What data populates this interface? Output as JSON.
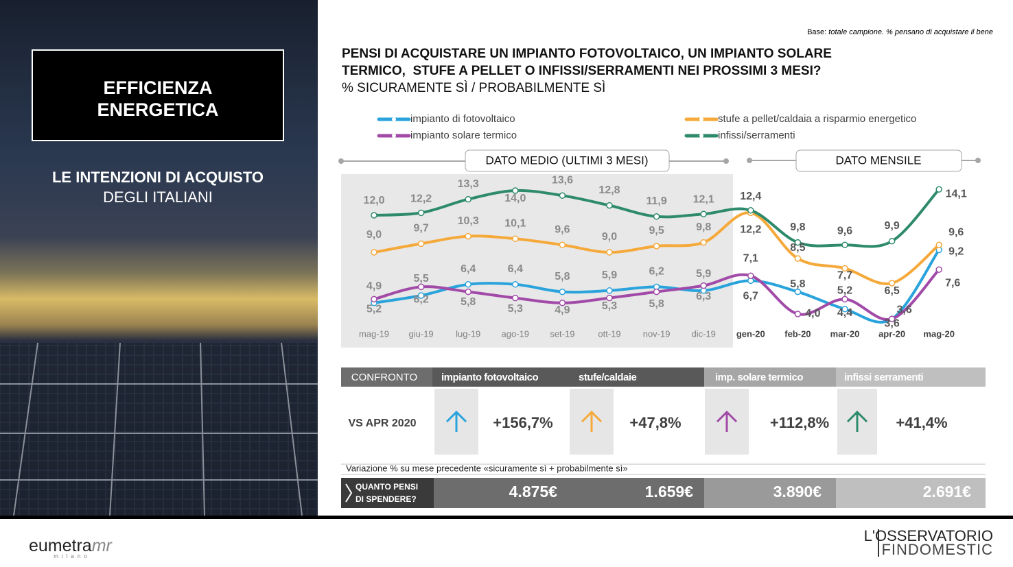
{
  "base_note": {
    "label": "Base:",
    "text": "totale campione. % pensano di acquistare il bene"
  },
  "sidebar": {
    "title_lines": [
      "EFFICIENZA",
      "ENERGETICA"
    ],
    "subtitle": "LE INTENZIONI DI ACQUISTO",
    "subtitle2": "DEGLI ITALIANI"
  },
  "chart_data": {
    "type": "line",
    "title_lines": [
      "PENSI DI ACQUISTARE UN IMPIANTO FOTOVOLTAICO, UN IMPIANTO SOLARE",
      "TERMICO,  STUFE A PELLET O INFISSI/SERRAMENTI NEI PROSSIMI 3 MESI?"
    ],
    "subtitle": "% SICURAMENTE SÌ / PROBABILMENTE SÌ",
    "period_labels": [
      "DATO MEDIO (ULTIMI 3 MESI)",
      "DATO MENSILE"
    ],
    "categories": [
      "mag-19",
      "giu-19",
      "lug-19",
      "ago-19",
      "set-19",
      "ott-19",
      "nov-19",
      "dic-19",
      "gen-20",
      "feb-20",
      "mar-20",
      "apr-20",
      "mag-20"
    ],
    "ylim": [
      0,
      15
    ],
    "series": [
      {
        "name": "impianto di fotovoltaico",
        "color": "#2aa3dc",
        "values": [
          4.9,
          5.5,
          6.4,
          6.4,
          5.8,
          5.9,
          6.2,
          5.9,
          6.7,
          5.8,
          4.4,
          3.6,
          9.2
        ],
        "value_labels": [
          "4,9",
          "5,5",
          "6,4",
          "6,4",
          "5,8",
          "5,9",
          "6,2",
          "5,9",
          "6,7",
          "5,8",
          "4,4",
          "3,6",
          "9,2"
        ]
      },
      {
        "name": "stufe a pellet/caldaia a risparmio energetico",
        "color": "#f5a93a",
        "values": [
          9.0,
          9.7,
          10.3,
          10.1,
          9.6,
          9.0,
          9.5,
          9.8,
          12.2,
          8.5,
          7.7,
          6.5,
          9.6
        ],
        "value_labels": [
          "9,0",
          "9,7",
          "10,3",
          "10,1",
          "9,6",
          "9,0",
          "9,5",
          "9,8",
          "12,2",
          "8,5",
          "7,7",
          "6,5",
          "9,6"
        ]
      },
      {
        "name": "impianto solare termico",
        "color": "#a14aa8",
        "values": [
          5.2,
          6.2,
          5.8,
          5.3,
          4.9,
          5.3,
          5.8,
          6.3,
          7.1,
          4.0,
          5.2,
          3.6,
          7.6
        ],
        "value_labels": [
          "5,2",
          "6,2",
          "5,8",
          "5,3",
          "4,9",
          "5,3",
          "5,8",
          "6,3",
          "7,1",
          "4,0",
          "5,2",
          "3,6",
          "7,6"
        ]
      },
      {
        "name": "infissi/serramenti",
        "color": "#2e8a6c",
        "values": [
          12.0,
          12.2,
          13.3,
          14.0,
          13.6,
          12.8,
          11.9,
          12.1,
          12.4,
          9.8,
          9.6,
          9.9,
          14.1
        ],
        "value_labels": [
          "12,0",
          "12,2",
          "13,3",
          "14,0",
          "13,6",
          "12,8",
          "11,9",
          "12,1",
          "12,4",
          "9,8",
          "9,6",
          "9,9",
          "14,1"
        ]
      }
    ]
  },
  "comparison": {
    "header": "CONFRONTO",
    "columns": [
      "impianto fotovoltaico",
      "stufe/caldaie",
      "imp. solare termico",
      "infissi serramenti"
    ],
    "row_label": "VS APR 2020",
    "changes": [
      "+156,7%",
      "+47,8%",
      "+112,8%",
      "+41,4%"
    ],
    "note": "Variazione % su mese precedente «sicuramente sì + probabilmente sì»",
    "spend_label": [
      "QUANTO PENSI",
      "DI SPENDERE?"
    ],
    "spend": [
      "4.875€",
      "1.659€",
      "3.890€",
      "2.691€"
    ]
  },
  "footer": {
    "left_logo": "eumetra",
    "left_logo_mr": "mr",
    "left_logo_sub": "milano",
    "right_logo": [
      "L'OSSERVATORIO",
      "FINDOMESTIC"
    ]
  }
}
